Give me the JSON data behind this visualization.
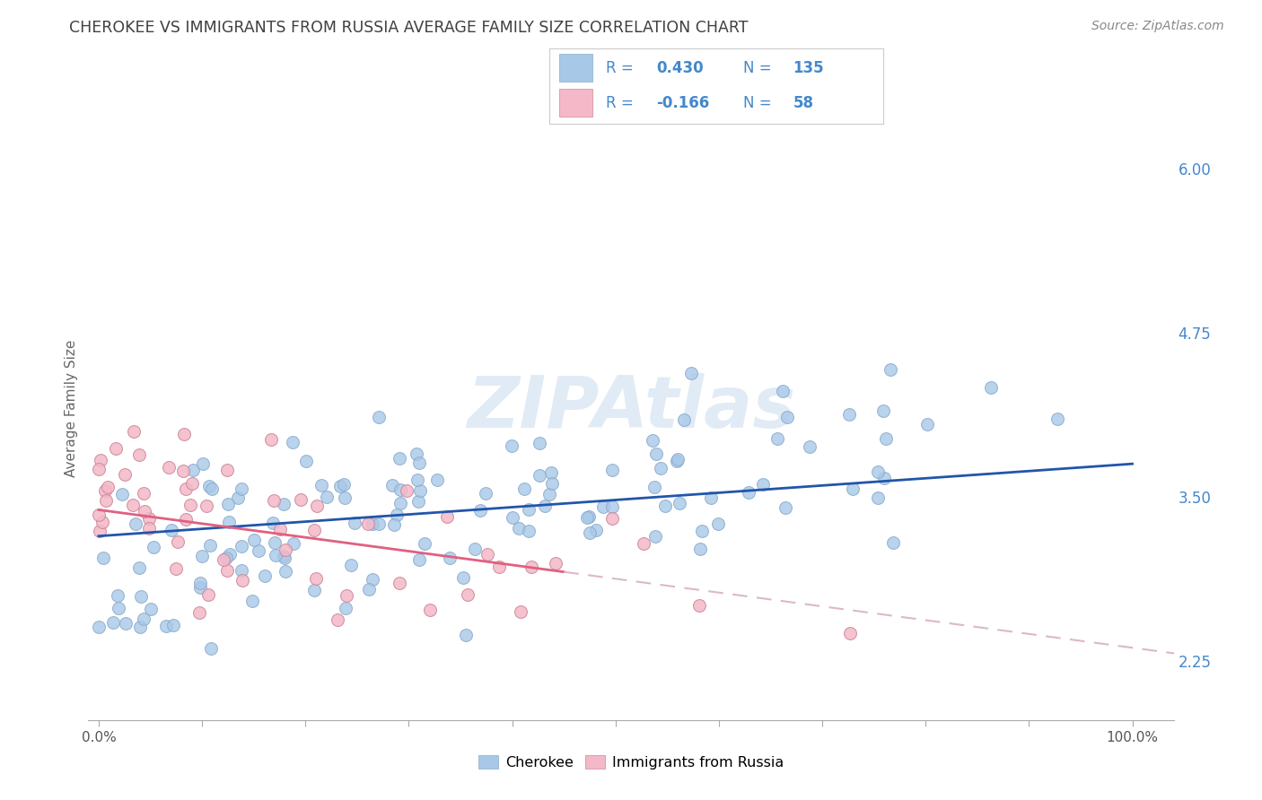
{
  "title": "CHEROKEE VS IMMIGRANTS FROM RUSSIA AVERAGE FAMILY SIZE CORRELATION CHART",
  "source": "Source: ZipAtlas.com",
  "ylabel": "Average Family Size",
  "right_yticks": [
    2.25,
    3.5,
    4.75,
    6.0
  ],
  "background_color": "#ffffff",
  "grid_color": "#cccccc",
  "watermark_text": "ZIPAtlas",
  "cherokee_color": "#a8c8e8",
  "russia_color": "#f4b8c8",
  "cherokee_line_color": "#2255aa",
  "russia_line_color": "#e06080",
  "russia_dash_color": "#dbb8c8",
  "title_color": "#404040",
  "right_axis_color": "#4488cc",
  "n_color": "#4488cc",
  "r_label_color": "#333333",
  "cherokee_r": 0.43,
  "russia_r": -0.166,
  "cherokee_n": 135,
  "russia_n": 58,
  "cherokee_intercept": 3.2,
  "cherokee_slope": 0.55,
  "russia_intercept": 3.4,
  "russia_slope": -1.05
}
